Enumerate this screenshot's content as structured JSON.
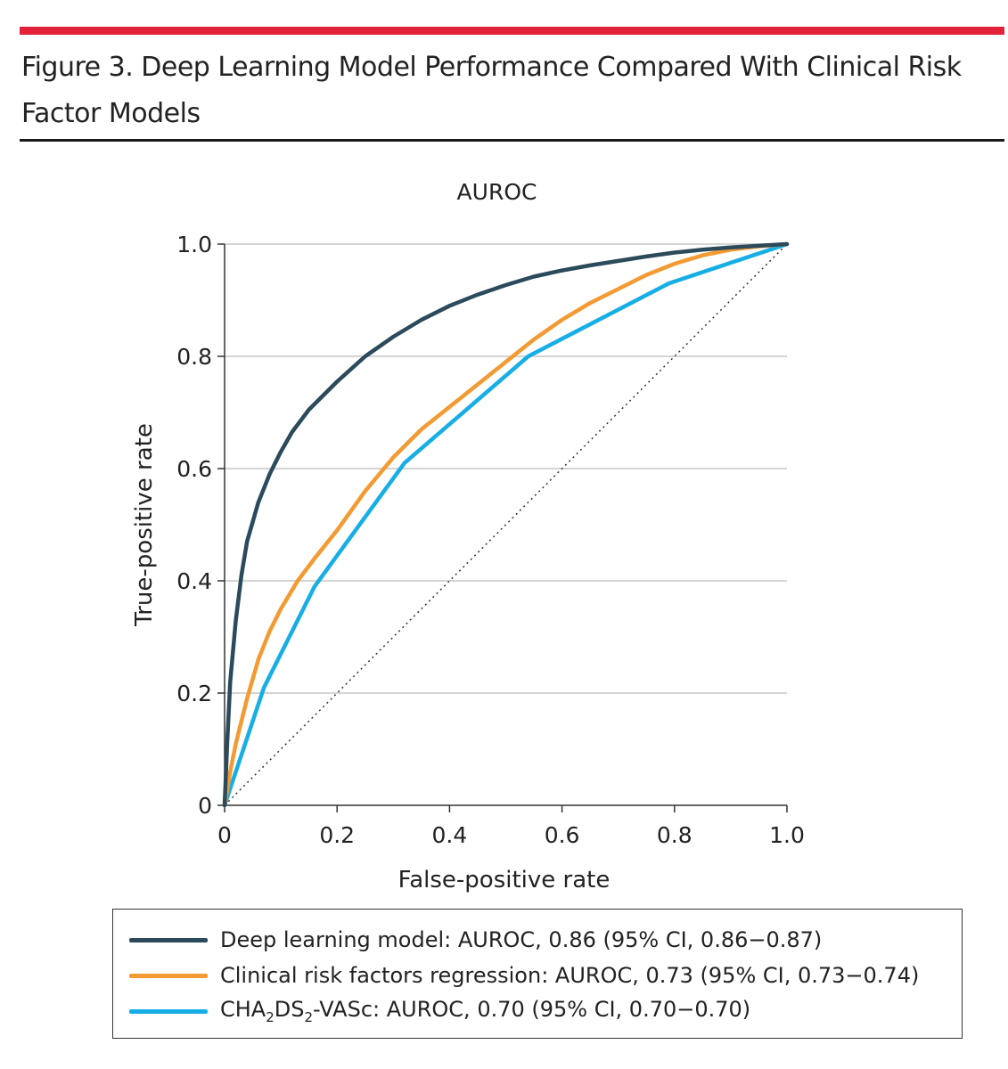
{
  "figure": {
    "title": "Figure 3. Deep Learning Model Performance Compared With Clinical Risk Factor Models"
  },
  "colors": {
    "accent_rule": "#e3223a",
    "deep_learning": "#2b4a5b",
    "clinical_regression": "#f39a33",
    "cha2ds2_vasc": "#17aee6",
    "reference": "#333333",
    "grid": "#d4d4d4"
  },
  "chart_data": {
    "type": "line",
    "title": "AUROC",
    "xlabel": "False-positive rate",
    "ylabel": "True-positive rate",
    "xlim": [
      0,
      1.0
    ],
    "ylim": [
      0,
      1.0
    ],
    "x_ticks": [
      "0",
      "0.2",
      "0.4",
      "0.6",
      "0.8",
      "1.0"
    ],
    "y_ticks": [
      "0",
      "0.2",
      "0.4",
      "0.6",
      "0.8",
      "1.0"
    ],
    "grid": "horizontal",
    "legend_position": "bottom",
    "reference_line": {
      "style": "dotted",
      "x": [
        0,
        1.0
      ],
      "y": [
        0,
        1.0
      ]
    },
    "series": [
      {
        "name": "Deep learning model: AUROC, 0.86 (95% CI, 0.86−0.87)",
        "x": [
          0,
          0.005,
          0.01,
          0.02,
          0.03,
          0.04,
          0.06,
          0.08,
          0.1,
          0.12,
          0.15,
          0.2,
          0.25,
          0.3,
          0.35,
          0.4,
          0.45,
          0.5,
          0.55,
          0.6,
          0.65,
          0.7,
          0.75,
          0.8,
          0.85,
          0.9,
          0.95,
          1.0
        ],
        "y": [
          0,
          0.12,
          0.22,
          0.33,
          0.41,
          0.47,
          0.54,
          0.59,
          0.63,
          0.665,
          0.705,
          0.755,
          0.8,
          0.835,
          0.865,
          0.89,
          0.91,
          0.927,
          0.942,
          0.953,
          0.962,
          0.97,
          0.978,
          0.985,
          0.99,
          0.994,
          0.997,
          1.0
        ]
      },
      {
        "name": "Clinical risk factors regression: AUROC, 0.73 (95% CI, 0.73−0.74)",
        "x": [
          0,
          0.01,
          0.02,
          0.04,
          0.06,
          0.08,
          0.1,
          0.13,
          0.16,
          0.2,
          0.25,
          0.3,
          0.35,
          0.4,
          0.45,
          0.5,
          0.55,
          0.6,
          0.65,
          0.7,
          0.75,
          0.8,
          0.85,
          0.9,
          0.95,
          1.0
        ],
        "y": [
          0,
          0.06,
          0.11,
          0.19,
          0.26,
          0.31,
          0.35,
          0.4,
          0.44,
          0.49,
          0.56,
          0.62,
          0.67,
          0.71,
          0.75,
          0.79,
          0.83,
          0.865,
          0.895,
          0.92,
          0.945,
          0.965,
          0.98,
          0.99,
          0.996,
          1.0
        ]
      },
      {
        "name": "CHA2DS2-VASc: AUROC, 0.70 (95% CI, 0.70−0.70)",
        "x": [
          0,
          0.07,
          0.16,
          0.32,
          0.54,
          0.79,
          1.0
        ],
        "y": [
          0,
          0.21,
          0.39,
          0.61,
          0.8,
          0.93,
          1.0
        ]
      }
    ]
  },
  "legend": {
    "items": [
      {
        "pre": "Deep learning model: AUROC, 0.86 (95% CI, 0.86−0.87)"
      },
      {
        "pre": "Clinical risk factors regression: AUROC, 0.73 (95% CI, 0.73−0.74)"
      },
      {
        "pre": "CHA",
        "sub1": "2",
        "mid": "DS",
        "sub2": "2",
        "post": "-VASc: AUROC, 0.70 (95% CI, 0.70−0.70)"
      }
    ]
  }
}
